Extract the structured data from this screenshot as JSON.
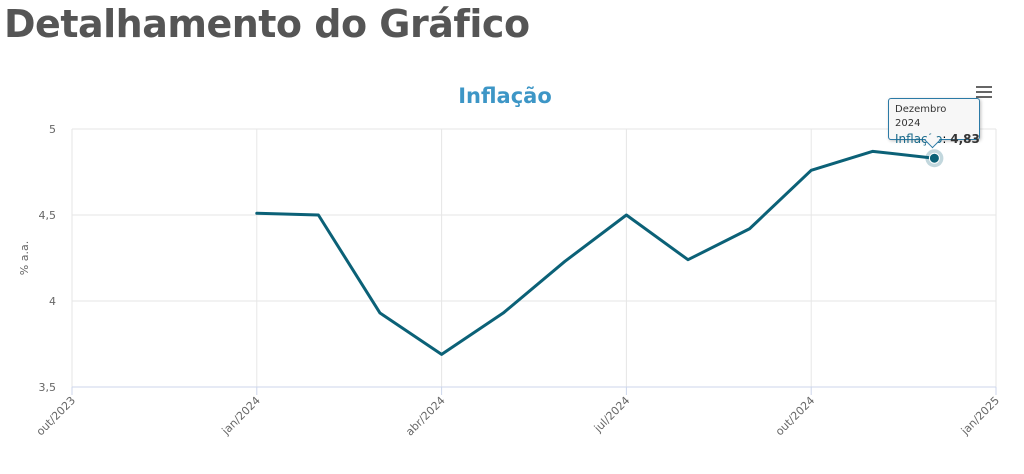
{
  "page": {
    "title": "Detalhamento do Gráfico"
  },
  "chart_data": {
    "type": "line",
    "title": "Inflação",
    "ylabel": "% a.a.",
    "xlabel": "",
    "ylim": [
      3.5,
      5
    ],
    "yticks": [
      {
        "value": 3.5,
        "label": "3,5"
      },
      {
        "value": 4,
        "label": "4"
      },
      {
        "value": 4.5,
        "label": "4,5"
      },
      {
        "value": 5,
        "label": "5"
      }
    ],
    "xticks": [
      "out/2023",
      "jan/2024",
      "abr/2024",
      "jul/2024",
      "out/2024",
      "jan/2025"
    ],
    "grid": true,
    "series": [
      {
        "name": "Inflação",
        "color": "#0b6177",
        "x": [
          "2024-01",
          "2024-02",
          "2024-03",
          "2024-04",
          "2024-05",
          "2024-06",
          "2024-07",
          "2024-08",
          "2024-09",
          "2024-10",
          "2024-11",
          "2024-12"
        ],
        "values": [
          4.51,
          4.5,
          3.93,
          3.69,
          3.93,
          4.23,
          4.5,
          4.24,
          4.42,
          4.76,
          4.87,
          4.83
        ]
      }
    ],
    "tooltip": {
      "date": "Dezembro 2024",
      "series": "Inflação",
      "value": "4,83"
    }
  }
}
